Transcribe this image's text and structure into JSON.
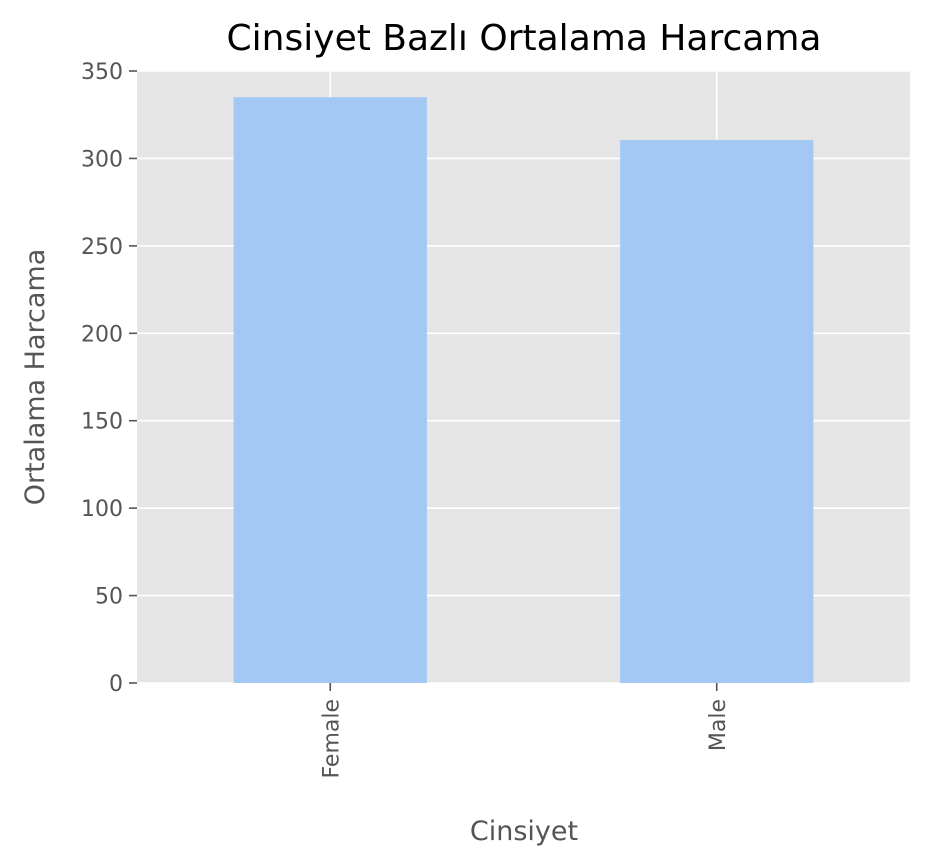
{
  "chart_data": {
    "type": "bar",
    "title": "Cinsiyet Bazlı Ortalama Harcama",
    "xlabel": "Cinsiyet",
    "ylabel": "Ortalama Harcama",
    "categories": [
      "Female",
      "Male"
    ],
    "values": [
      335,
      310.5
    ],
    "ylim": [
      0,
      350
    ],
    "yticks": [
      0,
      50,
      100,
      150,
      200,
      250,
      300,
      350
    ],
    "grid": true,
    "bar_color": "#a3c8f3",
    "plot_background": "#e5e5e5",
    "grid_color": "#ffffff",
    "text_color": "#555555"
  }
}
